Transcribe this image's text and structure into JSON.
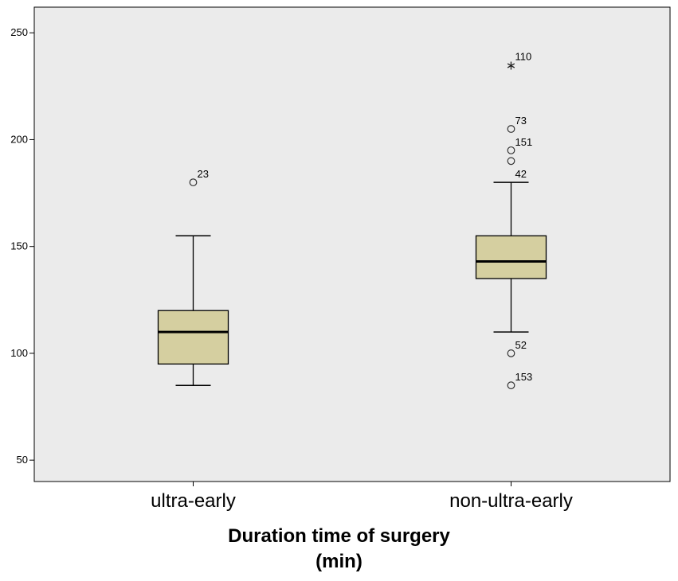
{
  "chart_data": {
    "type": "boxplot",
    "title": "",
    "xlabel_line1": "Duration time of surgery",
    "xlabel_line2": "(min)",
    "ylabel": "",
    "ylim": [
      40,
      262
    ],
    "yticks": [
      50,
      100,
      150,
      200,
      250
    ],
    "grid": false,
    "colors": {
      "plot_bg": "#ebebeb",
      "box_fill": "#d5cfa0",
      "line": "#000000"
    },
    "groups": [
      {
        "category": "ultra-early",
        "whisker_low": 85,
        "q1": 95,
        "median": 110,
        "q3": 120,
        "whisker_high": 155,
        "outliers": [
          {
            "value": 180,
            "label": "23",
            "marker": "circle"
          }
        ]
      },
      {
        "category": "non-ultra-early",
        "whisker_low": 110,
        "q1": 135,
        "median": 143,
        "q3": 155,
        "whisker_high": 180,
        "outliers": [
          {
            "value": 235,
            "label": "110",
            "marker": "star"
          },
          {
            "value": 205,
            "label": "73",
            "marker": "circle"
          },
          {
            "value": 195,
            "label": "151",
            "marker": "circle"
          },
          {
            "value": 190,
            "label": "",
            "marker": "circle"
          },
          {
            "value": 180,
            "label": "42",
            "marker": "none"
          },
          {
            "value": 100,
            "label": "52",
            "marker": "circle"
          },
          {
            "value": 85,
            "label": "153",
            "marker": "circle"
          }
        ]
      }
    ]
  }
}
